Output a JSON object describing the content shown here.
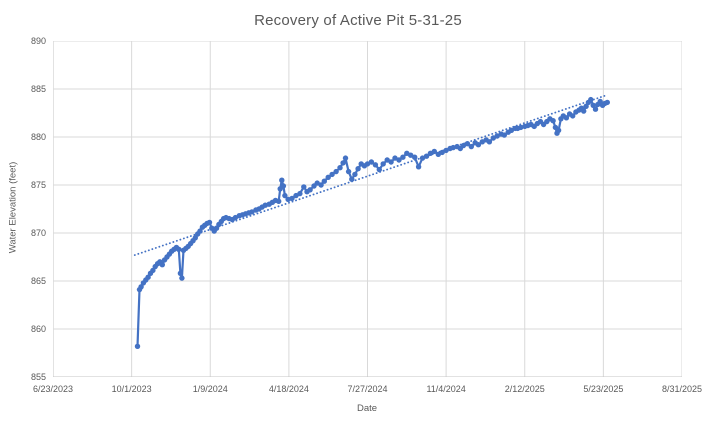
{
  "chart_data": {
    "type": "scatter",
    "title": "Recovery of Active Pit 5-31-25",
    "xlabel": "Date",
    "ylabel": "Water Elevation (feet)",
    "x_unit": "days since 6/23/2023",
    "xlim_days": [
      0,
      800
    ],
    "ylim": [
      855,
      890
    ],
    "x_tick_days": [
      0,
      100,
      200,
      300,
      400,
      500,
      600,
      700,
      800
    ],
    "x_tick_labels": [
      "6/23/2023",
      "10/1/2023",
      "1/9/2024",
      "4/18/2024",
      "7/27/2024",
      "11/4/2024",
      "2/12/2025",
      "5/23/2025",
      "8/31/2025"
    ],
    "y_ticks": [
      855,
      860,
      865,
      870,
      875,
      880,
      885,
      890
    ],
    "grid": true,
    "legend": false,
    "colors": {
      "series": "#4472C4",
      "trendline": "#4472C4",
      "gridline": "#D9D9D9",
      "axis_line": "#C6C6C6",
      "text": "#595959",
      "background": "#FFFFFF"
    },
    "series": [
      {
        "name": "Water Elevation",
        "style": "line+markers",
        "color": "#4472C4",
        "points": [
          [
            107.5,
            858.2
          ],
          [
            110,
            864.1
          ],
          [
            112,
            864.4
          ],
          [
            115,
            864.8
          ],
          [
            118,
            865.1
          ],
          [
            121,
            865.4
          ],
          [
            124,
            865.8
          ],
          [
            127,
            866.1
          ],
          [
            130,
            866.5
          ],
          [
            133,
            866.8
          ],
          [
            136,
            867.0
          ],
          [
            139,
            866.7
          ],
          [
            142,
            867.2
          ],
          [
            145,
            867.5
          ],
          [
            148,
            867.8
          ],
          [
            151,
            868.1
          ],
          [
            154,
            868.3
          ],
          [
            157,
            868.5
          ],
          [
            160,
            868.3
          ],
          [
            162,
            865.8
          ],
          [
            164,
            865.3
          ],
          [
            166,
            868.2
          ],
          [
            169,
            868.4
          ],
          [
            172,
            868.6
          ],
          [
            175,
            868.9
          ],
          [
            178,
            869.2
          ],
          [
            181,
            869.5
          ],
          [
            184,
            869.9
          ],
          [
            187,
            870.2
          ],
          [
            190,
            870.6
          ],
          [
            193,
            870.8
          ],
          [
            196,
            871.0
          ],
          [
            199,
            871.1
          ],
          [
            202,
            870.5
          ],
          [
            205,
            870.2
          ],
          [
            208,
            870.5
          ],
          [
            211,
            870.9
          ],
          [
            214,
            871.2
          ],
          [
            217,
            871.5
          ],
          [
            220,
            871.6
          ],
          [
            224,
            871.5
          ],
          [
            228,
            871.4
          ],
          [
            232,
            871.6
          ],
          [
            237,
            871.8
          ],
          [
            241,
            871.9
          ],
          [
            245,
            872.0
          ],
          [
            249,
            872.1
          ],
          [
            253,
            872.2
          ],
          [
            258,
            872.4
          ],
          [
            262,
            872.5
          ],
          [
            266,
            872.7
          ],
          [
            270,
            872.9
          ],
          [
            275,
            873.0
          ],
          [
            279,
            873.2
          ],
          [
            283,
            873.4
          ],
          [
            287,
            873.3
          ],
          [
            289,
            874.6
          ],
          [
            291,
            875.5
          ],
          [
            293,
            874.9
          ],
          [
            295,
            873.9
          ],
          [
            299,
            873.5
          ],
          [
            304,
            873.6
          ],
          [
            309,
            873.9
          ],
          [
            314,
            874.1
          ],
          [
            319,
            874.8
          ],
          [
            323,
            874.3
          ],
          [
            327,
            874.5
          ],
          [
            332,
            874.9
          ],
          [
            336,
            875.2
          ],
          [
            341,
            875.0
          ],
          [
            345,
            875.4
          ],
          [
            350,
            875.8
          ],
          [
            355,
            876.1
          ],
          [
            360,
            876.4
          ],
          [
            365,
            876.8
          ],
          [
            369,
            877.3
          ],
          [
            372,
            877.8
          ],
          [
            376,
            876.4
          ],
          [
            380,
            875.6
          ],
          [
            384,
            876.1
          ],
          [
            388,
            876.7
          ],
          [
            392,
            877.2
          ],
          [
            396,
            877.0
          ],
          [
            400,
            877.2
          ],
          [
            405,
            877.4
          ],
          [
            410,
            877.1
          ],
          [
            415,
            876.6
          ],
          [
            420,
            877.2
          ],
          [
            425,
            877.6
          ],
          [
            430,
            877.4
          ],
          [
            435,
            877.8
          ],
          [
            440,
            877.6
          ],
          [
            445,
            877.9
          ],
          [
            450,
            878.3
          ],
          [
            455,
            878.1
          ],
          [
            460,
            877.9
          ],
          [
            465,
            876.9
          ],
          [
            470,
            877.8
          ],
          [
            475,
            878.0
          ],
          [
            480,
            878.3
          ],
          [
            485,
            878.5
          ],
          [
            490,
            878.2
          ],
          [
            495,
            878.4
          ],
          [
            500,
            878.6
          ],
          [
            505,
            878.8
          ],
          [
            509,
            878.9
          ],
          [
            514,
            879.0
          ],
          [
            518,
            878.8
          ],
          [
            522,
            879.1
          ],
          [
            527,
            879.3
          ],
          [
            532,
            879.0
          ],
          [
            537,
            879.4
          ],
          [
            541,
            879.2
          ],
          [
            546,
            879.5
          ],
          [
            551,
            879.7
          ],
          [
            555,
            879.5
          ],
          [
            560,
            879.9
          ],
          [
            565,
            880.1
          ],
          [
            570,
            880.3
          ],
          [
            574,
            880.2
          ],
          [
            579,
            880.5
          ],
          [
            583,
            880.7
          ],
          [
            588,
            880.9
          ],
          [
            591,
            880.9
          ],
          [
            595,
            881.0
          ],
          [
            600,
            881.1
          ],
          [
            604,
            881.2
          ],
          [
            608,
            881.3
          ],
          [
            612,
            881.1
          ],
          [
            616,
            881.4
          ],
          [
            620,
            881.6
          ],
          [
            624,
            881.3
          ],
          [
            628,
            881.6
          ],
          [
            632,
            881.9
          ],
          [
            636,
            881.7
          ],
          [
            639,
            881.0
          ],
          [
            641,
            880.4
          ],
          [
            643,
            880.7
          ],
          [
            646,
            881.9
          ],
          [
            649,
            882.2
          ],
          [
            653,
            882.0
          ],
          [
            657,
            882.4
          ],
          [
            661,
            882.2
          ],
          [
            665,
            882.6
          ],
          [
            669,
            882.8
          ],
          [
            672,
            883.0
          ],
          [
            675,
            882.7
          ],
          [
            678,
            883.2
          ],
          [
            681,
            883.6
          ],
          [
            684,
            883.9
          ],
          [
            687,
            883.3
          ],
          [
            690,
            882.9
          ],
          [
            693,
            883.4
          ],
          [
            696,
            883.7
          ],
          [
            699,
            883.3
          ],
          [
            702,
            883.5
          ],
          [
            705,
            883.6
          ]
        ]
      },
      {
        "name": "Linear Trendline",
        "style": "dotted-line",
        "color": "#4472C4",
        "points": [
          [
            104,
            867.7
          ],
          [
            702,
            884.3
          ]
        ]
      }
    ]
  }
}
